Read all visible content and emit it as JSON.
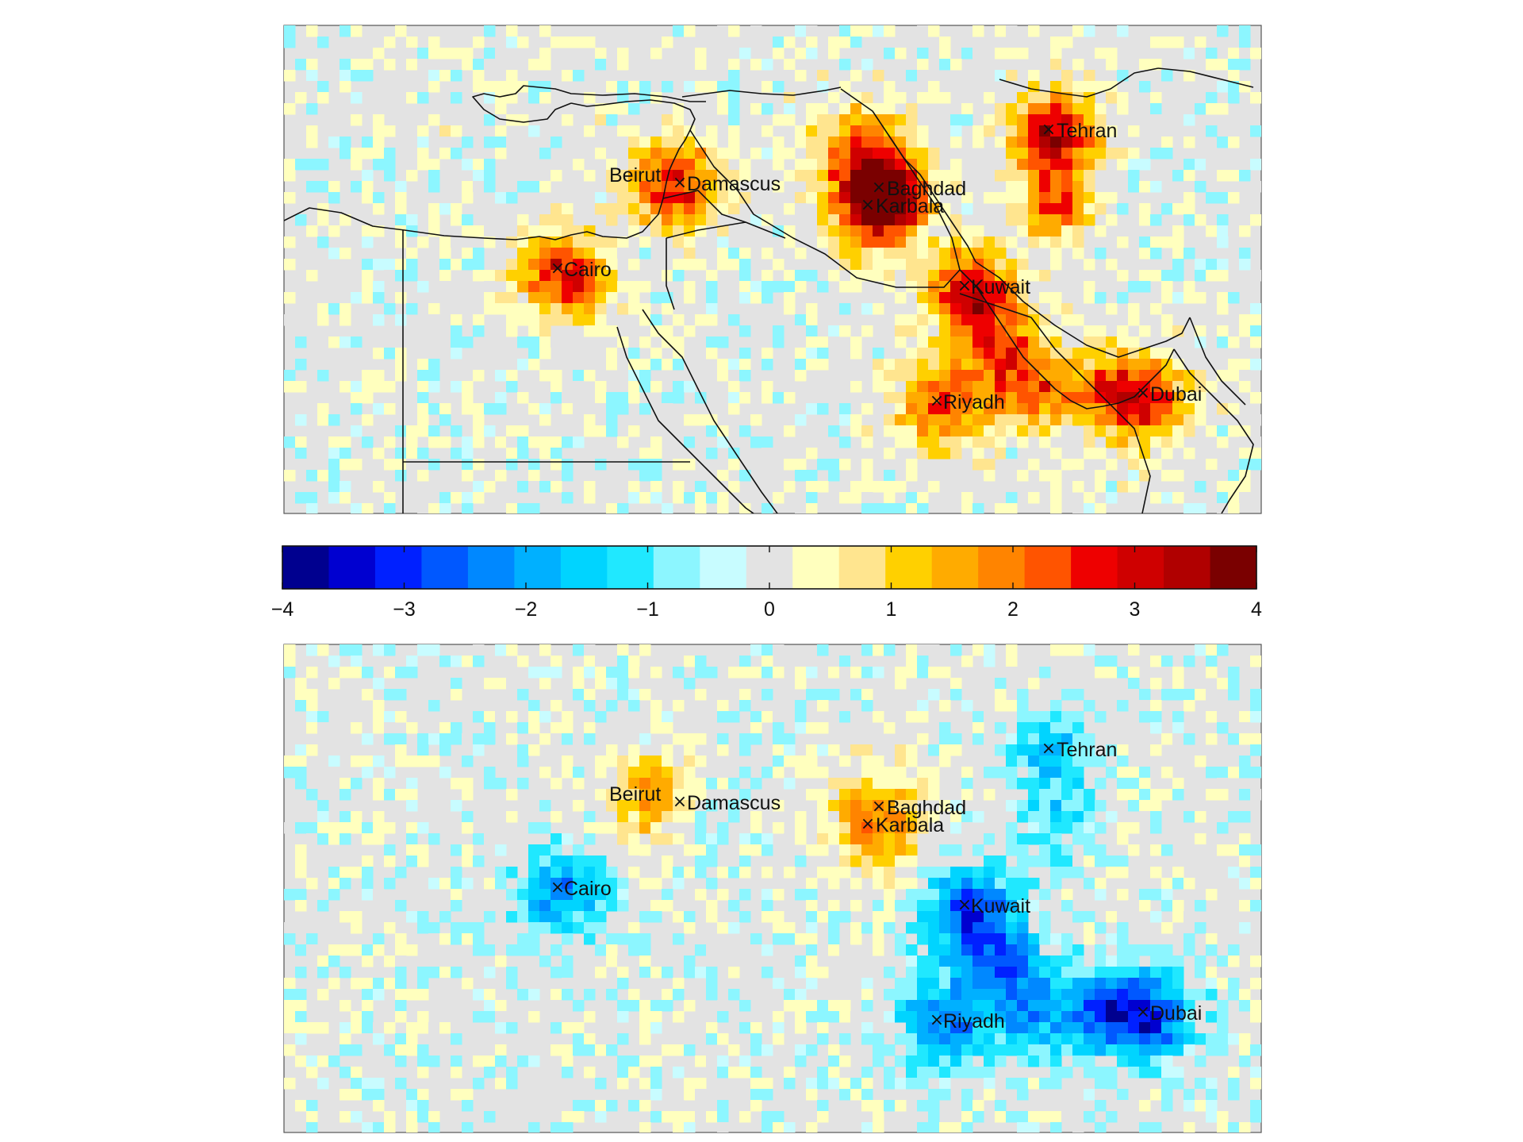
{
  "colorbar": {
    "min": -4,
    "max": 4,
    "step": 0.4,
    "colors": [
      "#00008f",
      "#0000d0",
      "#0020ff",
      "#0058ff",
      "#0088ff",
      "#00b0ff",
      "#00d4ff",
      "#20e8ff",
      "#8cf6ff",
      "#c8fcff",
      "#e3e3e3",
      "#ffffbe",
      "#ffe58f",
      "#ffd000",
      "#ffab00",
      "#ff8400",
      "#ff5400",
      "#ee0000",
      "#cf0000",
      "#b00000",
      "#7a0000"
    ],
    "ticks": [
      {
        "value": -4,
        "label": "−4"
      },
      {
        "value": -3,
        "label": "−3"
      },
      {
        "value": -2,
        "label": "−2"
      },
      {
        "value": -1,
        "label": "−1"
      },
      {
        "value": 0,
        "label": "0"
      },
      {
        "value": 1,
        "label": "1"
      },
      {
        "value": 2,
        "label": "2"
      },
      {
        "value": 3,
        "label": "3"
      },
      {
        "value": 4,
        "label": "4"
      }
    ]
  },
  "marker_symbol": "×",
  "maps": [
    {
      "name": "top-map",
      "cities": [
        {
          "name": "Tehran",
          "value": 3.6
        },
        {
          "name": "Baghdad",
          "value": 3.5
        },
        {
          "name": "Karbala",
          "value": 2.0
        },
        {
          "name": "Beirut",
          "value": 1.8
        },
        {
          "name": "Damascus",
          "value": 1.6
        },
        {
          "name": "Cairo",
          "value": 3.2
        },
        {
          "name": "Kuwait",
          "value": 3.3
        },
        {
          "name": "Riyadh",
          "value": 2.6
        },
        {
          "name": "Dubai",
          "value": 2.8
        }
      ]
    },
    {
      "name": "bottom-map",
      "cities": [
        {
          "name": "Tehran",
          "value": -1.6
        },
        {
          "name": "Baghdad",
          "value": 0.6
        },
        {
          "name": "Karbala",
          "value": 1.8
        },
        {
          "name": "Beirut",
          "value": 2.6
        },
        {
          "name": "Damascus",
          "value": -1.2
        },
        {
          "name": "Cairo",
          "value": -2.0
        },
        {
          "name": "Kuwait",
          "value": -2.8
        },
        {
          "name": "Riyadh",
          "value": -2.4
        },
        {
          "name": "Dubai",
          "value": -3.0
        }
      ]
    }
  ]
}
